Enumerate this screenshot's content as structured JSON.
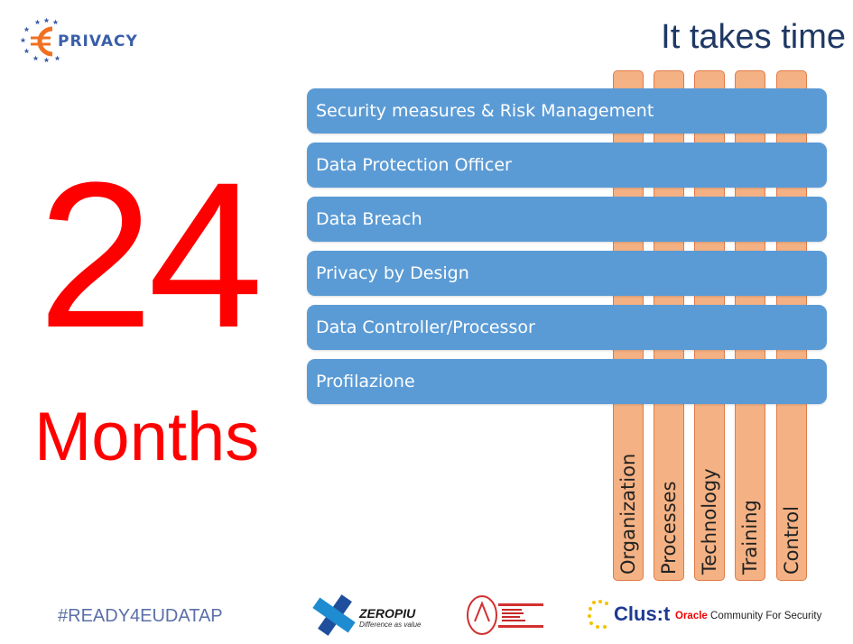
{
  "header": {
    "logo_text": "PRIVACY",
    "title": "It takes time"
  },
  "countdown": {
    "number": "24",
    "unit": "Months"
  },
  "columns": [
    {
      "label": "Organization"
    },
    {
      "label": "Processes"
    },
    {
      "label": "Technology"
    },
    {
      "label": "Training"
    },
    {
      "label": "Control"
    }
  ],
  "rows": [
    {
      "label": "Security measures & Risk Management"
    },
    {
      "label": "Data Protection Officer"
    },
    {
      "label": "Data Breach"
    },
    {
      "label": "Privacy by Design"
    },
    {
      "label": "Data Controller/Processor"
    },
    {
      "label": "Profilazione"
    }
  ],
  "footer": {
    "hashtag": "#READY4EUDATAP",
    "zeropiu_name": "ZEROPIU",
    "zeropiu_tagline": "Difference as value",
    "clusit_name": "Clus:t",
    "oracle_brand": "Oracle",
    "oracle_rest": " Community For Security"
  },
  "colors": {
    "accent_red": "#ff0000",
    "row_blue": "#5b9bd5",
    "column_orange": "#f4b183",
    "title_navy": "#1f3864"
  }
}
